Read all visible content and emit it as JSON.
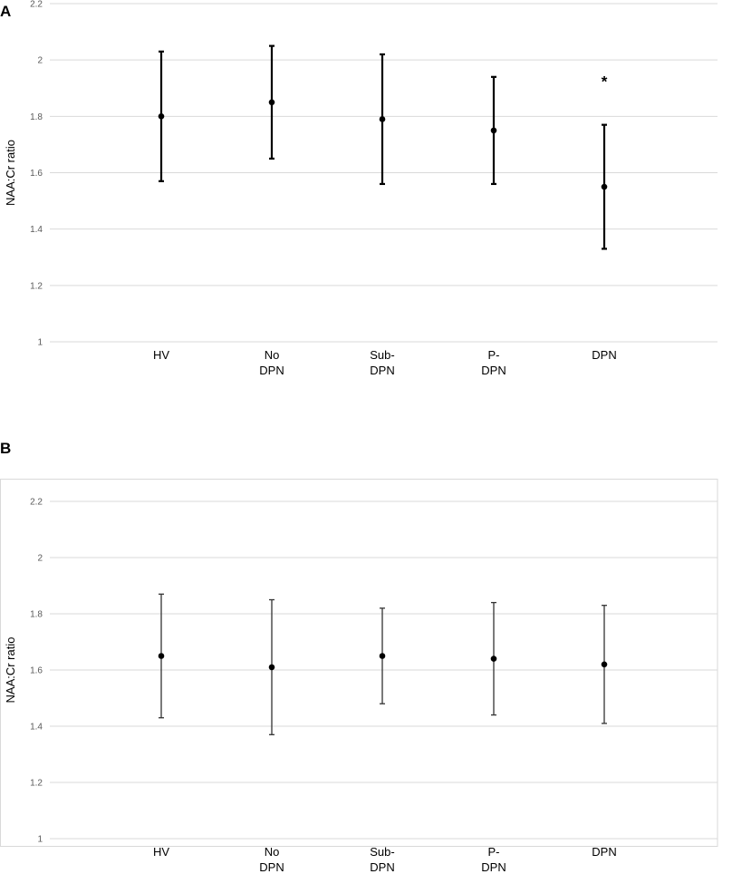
{
  "chart_data": [
    {
      "type": "scatter",
      "panel_label": "A",
      "categories": [
        [
          "HV"
        ],
        [
          "No",
          "DPN"
        ],
        [
          "Sub-",
          "DPN"
        ],
        [
          "P-",
          "DPN"
        ],
        [
          "DPN"
        ]
      ],
      "values": [
        1.8,
        1.85,
        1.79,
        1.75,
        1.55
      ],
      "error_low": [
        1.57,
        1.65,
        1.56,
        1.56,
        1.33
      ],
      "error_high": [
        2.03,
        2.05,
        2.02,
        1.94,
        1.77
      ],
      "annotations": [
        {
          "category_index": 4,
          "text": "*"
        }
      ],
      "ylabel": "NAA:Cr ratio",
      "ylim": [
        1,
        2.2
      ],
      "yticks": [
        "1",
        "1.2",
        "1.4",
        "1.6",
        "1.8",
        "2",
        "2.2"
      ],
      "grid": true,
      "marker_color": "#000000"
    },
    {
      "type": "scatter",
      "panel_label": "B",
      "categories": [
        [
          "HV"
        ],
        [
          "No",
          "DPN"
        ],
        [
          "Sub-",
          "DPN"
        ],
        [
          "P-",
          "DPN"
        ],
        [
          "DPN"
        ]
      ],
      "values": [
        1.65,
        1.61,
        1.65,
        1.64,
        1.62
      ],
      "error_low": [
        1.43,
        1.37,
        1.48,
        1.44,
        1.41
      ],
      "error_high": [
        1.87,
        1.85,
        1.82,
        1.84,
        1.83
      ],
      "annotations": [],
      "ylabel": "NAA:Cr ratio",
      "ylim": [
        1,
        2.2
      ],
      "yticks": [
        "1",
        "1.2",
        "1.4",
        "1.6",
        "1.8",
        "2",
        "2.2"
      ],
      "grid": true,
      "marker_color": "#000000"
    }
  ]
}
